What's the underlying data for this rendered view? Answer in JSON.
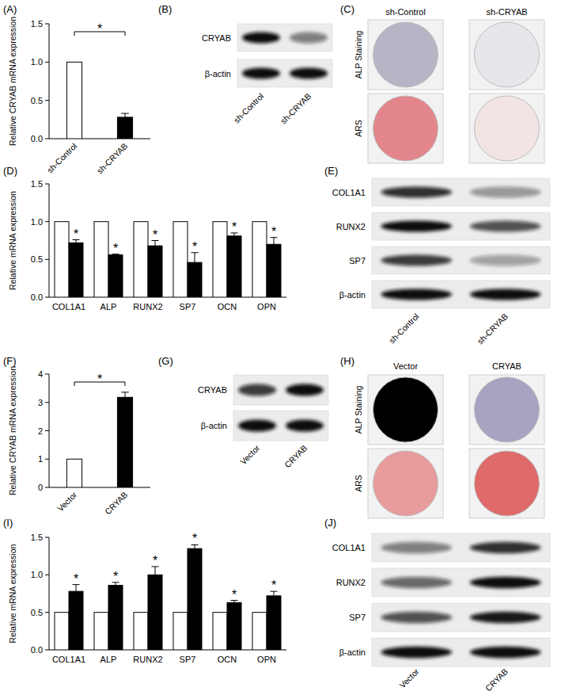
{
  "chart_data": [
    {
      "type": "bar",
      "title": "(A)",
      "categories": [
        "sh-Control",
        "sh-CRYAB"
      ],
      "values": [
        1,
        0.28
      ],
      "errors": [
        null,
        0.05
      ],
      "colors": [
        "#ffffff",
        "#000000"
      ],
      "y_label": "Relative CRYAB mRNA expression",
      "ylim": [
        0,
        1.5
      ],
      "yticks": [
        {
          "value": 0,
          "label": "0.0"
        },
        0.5,
        {
          "value": 1,
          "label": "1.0"
        },
        1.5
      ],
      "annotations": [
        "*"
      ]
    },
    {
      "type": "bar",
      "title": "(D)",
      "categories": [
        "COL1A1",
        "ALP",
        "RUNX2",
        "SP7",
        "OCN",
        "OPN"
      ],
      "series": [
        {
          "color": "#ffffff",
          "values": [
            1,
            1,
            1,
            1,
            1,
            1
          ]
        },
        {
          "color": "#000000",
          "values": [
            0.72,
            0.56,
            0.68,
            0.46,
            0.81,
            0.7
          ],
          "errors": [
            0.04,
            0.01,
            0.07,
            0.13,
            0.04,
            0.09
          ]
        }
      ],
      "y_label": "Relative mRNA expression",
      "ylim": [
        0,
        1.5
      ],
      "yticks": [
        {
          "value": 0,
          "label": "0.0"
        },
        0.5,
        {
          "value": 1,
          "label": "1.0"
        },
        1.5
      ],
      "annotations": [
        "*",
        "*",
        "*",
        "*",
        "*",
        "*"
      ]
    },
    {
      "type": "bar",
      "title": "(F)",
      "categories": [
        "Vector",
        "CRYAB"
      ],
      "values": [
        1,
        3.18
      ],
      "errors": [
        null,
        0.18
      ],
      "colors": [
        "#ffffff",
        "#000000"
      ],
      "y_label": "Relative CRYAB mRNA expression",
      "ylim": [
        0,
        4
      ],
      "yticks": [
        0,
        1,
        2,
        3,
        4
      ],
      "annotations": [
        "*"
      ]
    },
    {
      "type": "bar",
      "title": "(I)",
      "categories": [
        "COL1A1",
        "ALP",
        "RUNX2",
        "SP7",
        "OCN",
        "OPN"
      ],
      "series": [
        {
          "color": "#ffffff",
          "values": [
            0.5,
            0.5,
            0.5,
            0.5,
            0.5,
            0.5
          ]
        },
        {
          "color": "#000000",
          "values": [
            0.78,
            0.86,
            1.0,
            1.35,
            0.63,
            0.72
          ],
          "errors": [
            0.09,
            0.04,
            0.11,
            0.05,
            0.03,
            0.06
          ]
        }
      ],
      "y_label": "Relative mRNA expression",
      "ylim": [
        0,
        1.5
      ],
      "yticks": [
        {
          "value": 0,
          "label": "0.0"
        },
        0.5,
        {
          "value": 1,
          "label": "1.0"
        },
        1.5
      ],
      "annotations": [
        "*",
        "*",
        "*",
        "*",
        "*",
        "*"
      ]
    }
  ],
  "blots": [
    {
      "title": "(B)",
      "rows": [
        "CRYAB",
        "β-actin"
      ],
      "lanes": [
        "sh-Control",
        "sh-CRYAB"
      ],
      "bands": [
        [
          1,
          0.5
        ],
        [
          1,
          1
        ]
      ]
    },
    {
      "title": "(E)",
      "rows": [
        "COL1A1",
        "RUNX2",
        "SP7",
        "β-actin"
      ],
      "lanes": [
        "sh-Control",
        "sh-CRYAB"
      ],
      "bands": [
        [
          0.85,
          0.4
        ],
        [
          1,
          0.7
        ],
        [
          0.8,
          0.35
        ],
        [
          1,
          1
        ]
      ]
    },
    {
      "title": "(G)",
      "rows": [
        "CRYAB",
        "β-actin"
      ],
      "lanes": [
        "Vector",
        "CRYAB"
      ],
      "bands": [
        [
          0.8,
          1
        ],
        [
          1,
          1
        ]
      ]
    },
    {
      "title": "(J)",
      "rows": [
        "COL1A1",
        "RUNX2",
        "SP7",
        "β-actin"
      ],
      "lanes": [
        "Vector",
        "CRYAB"
      ],
      "bands": [
        [
          0.5,
          0.85
        ],
        [
          0.6,
          1
        ],
        [
          0.7,
          0.95
        ],
        [
          1,
          1
        ]
      ]
    }
  ],
  "stains": [
    {
      "title": "(C)",
      "rows": [
        "ALP Staining",
        "ARS"
      ],
      "columns": [
        "sh-Control",
        "sh-CRYAB"
      ],
      "colors": [
        [
          "#b9b3c6",
          "#e8e6ea"
        ],
        [
          "#e2868b",
          "#f3e4e4"
        ]
      ]
    },
    {
      "title": "(H)",
      "rows": [
        "ALP Staining",
        "ARS"
      ],
      "columns": [
        "Vector",
        "CRYAB"
      ],
      "colors": [
        [
          "#eaе8ec",
          "#a9a2c0"
        ],
        [
          "#e79c9b",
          "#de6a69"
        ]
      ]
    }
  ]
}
